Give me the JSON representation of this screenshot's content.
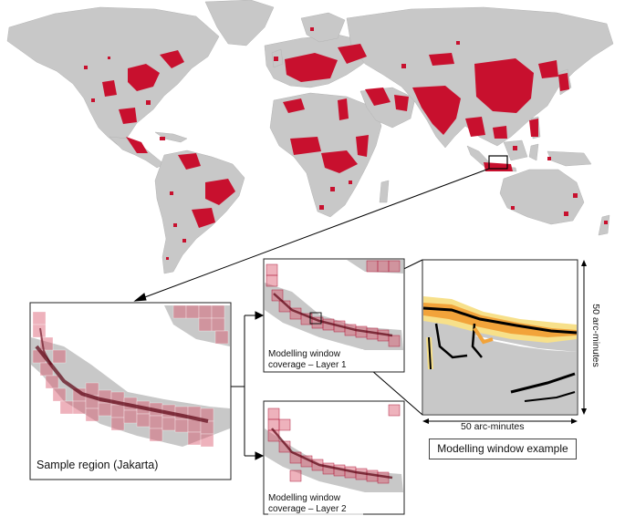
{
  "colors": {
    "land": "#c8c8c8",
    "urban": "#c8102e",
    "window_fill": "#d9546a",
    "heat_outer": "#f7e08a",
    "heat_mid": "#f2a33a",
    "heat_core": "#000000"
  },
  "labels": {
    "sample_region": "Sample region (Jakarta)",
    "layer1": "Modelling window coverage – Layer 1",
    "layer2": "Modelling window coverage – Layer 2",
    "window_example": "Modelling window example",
    "arc_bottom": "50 arc-minutes",
    "arc_right": "50 arc-minutes"
  }
}
